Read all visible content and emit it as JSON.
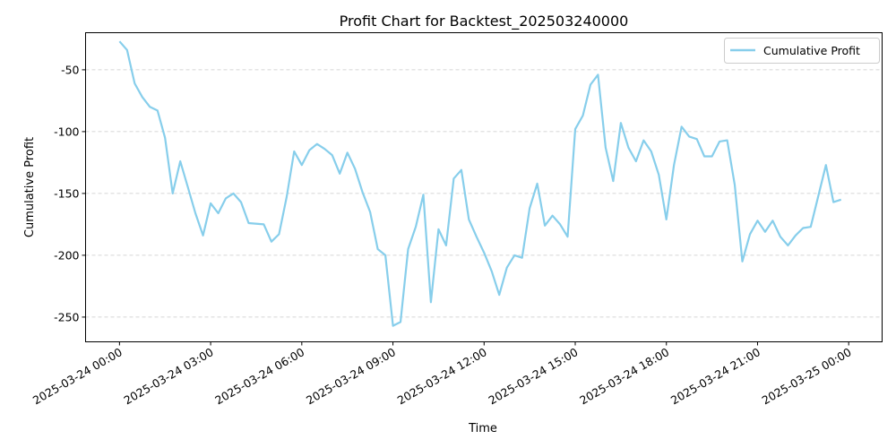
{
  "chart_data": {
    "type": "line",
    "title": "Profit Chart for Backtest_202503240000",
    "xlabel": "Time",
    "ylabel": "Cumulative Profit",
    "x_tick_labels": [
      "2025-03-24 00:00",
      "2025-03-24 03:00",
      "2025-03-24 06:00",
      "2025-03-24 09:00",
      "2025-03-24 12:00",
      "2025-03-24 15:00",
      "2025-03-24 18:00",
      "2025-03-24 21:00",
      "2025-03-25 00:00"
    ],
    "y_ticks": [
      -250,
      -200,
      -150,
      -100,
      -50
    ],
    "xlim": [
      "2025-03-23 22:53",
      "2025-03-25 01:06"
    ],
    "ylim": [
      -270,
      -20
    ],
    "grid": "y-dashed",
    "legend": "top-right",
    "series": [
      {
        "name": "Cumulative Profit",
        "color": "#87ceeb",
        "points": [
          [
            "2025-03-24 00:00",
            -27
          ],
          [
            "2025-03-24 00:15",
            -34
          ],
          [
            "2025-03-24 00:30",
            -61
          ],
          [
            "2025-03-24 00:45",
            -72
          ],
          [
            "2025-03-24 01:00",
            -80
          ],
          [
            "2025-03-24 01:15",
            -83
          ],
          [
            "2025-03-24 01:30",
            -105
          ],
          [
            "2025-03-24 01:45",
            -150
          ],
          [
            "2025-03-24 02:00",
            -124
          ],
          [
            "2025-03-24 02:15",
            -145
          ],
          [
            "2025-03-24 02:30",
            -166
          ],
          [
            "2025-03-24 02:45",
            -184
          ],
          [
            "2025-03-24 03:00",
            -158
          ],
          [
            "2025-03-24 03:15",
            -166
          ],
          [
            "2025-03-24 03:30",
            -154
          ],
          [
            "2025-03-24 03:45",
            -150
          ],
          [
            "2025-03-24 04:00",
            -157
          ],
          [
            "2025-03-24 04:15",
            -174
          ],
          [
            "2025-03-24 04:45",
            -175
          ],
          [
            "2025-03-24 05:00",
            -189
          ],
          [
            "2025-03-24 05:15",
            -183
          ],
          [
            "2025-03-24 05:30",
            -153
          ],
          [
            "2025-03-24 05:45",
            -116
          ],
          [
            "2025-03-24 06:00",
            -127
          ],
          [
            "2025-03-24 06:15",
            -115
          ],
          [
            "2025-03-24 06:30",
            -110
          ],
          [
            "2025-03-24 06:45",
            -114
          ],
          [
            "2025-03-24 07:00",
            -119
          ],
          [
            "2025-03-24 07:15",
            -134
          ],
          [
            "2025-03-24 07:30",
            -117
          ],
          [
            "2025-03-24 07:45",
            -130
          ],
          [
            "2025-03-24 08:00",
            -149
          ],
          [
            "2025-03-24 08:15",
            -165
          ],
          [
            "2025-03-24 08:30",
            -195
          ],
          [
            "2025-03-24 08:45",
            -200
          ],
          [
            "2025-03-24 09:00",
            -257
          ],
          [
            "2025-03-24 09:15",
            -254
          ],
          [
            "2025-03-24 09:30",
            -195
          ],
          [
            "2025-03-24 09:45",
            -177
          ],
          [
            "2025-03-24 10:00",
            -151
          ],
          [
            "2025-03-24 10:15",
            -238
          ],
          [
            "2025-03-24 10:30",
            -179
          ],
          [
            "2025-03-24 10:45",
            -192
          ],
          [
            "2025-03-24 11:00",
            -138
          ],
          [
            "2025-03-24 11:15",
            -131
          ],
          [
            "2025-03-24 11:30",
            -171
          ],
          [
            "2025-03-24 11:45",
            -185
          ],
          [
            "2025-03-24 12:00",
            -198
          ],
          [
            "2025-03-24 12:15",
            -213
          ],
          [
            "2025-03-24 12:30",
            -232
          ],
          [
            "2025-03-24 12:45",
            -210
          ],
          [
            "2025-03-24 13:00",
            -200
          ],
          [
            "2025-03-24 13:15",
            -202
          ],
          [
            "2025-03-24 13:30",
            -162
          ],
          [
            "2025-03-24 13:45",
            -142
          ],
          [
            "2025-03-24 14:00",
            -176
          ],
          [
            "2025-03-24 14:15",
            -168
          ],
          [
            "2025-03-24 14:30",
            -175
          ],
          [
            "2025-03-24 14:45",
            -185
          ],
          [
            "2025-03-24 15:00",
            -98
          ],
          [
            "2025-03-24 15:15",
            -87
          ],
          [
            "2025-03-24 15:30",
            -62
          ],
          [
            "2025-03-24 15:45",
            -54
          ],
          [
            "2025-03-24 16:00",
            -113
          ],
          [
            "2025-03-24 16:15",
            -140
          ],
          [
            "2025-03-24 16:30",
            -93
          ],
          [
            "2025-03-24 16:45",
            -113
          ],
          [
            "2025-03-24 17:00",
            -124
          ],
          [
            "2025-03-24 17:15",
            -107
          ],
          [
            "2025-03-24 17:30",
            -116
          ],
          [
            "2025-03-24 17:45",
            -135
          ],
          [
            "2025-03-24 18:00",
            -171
          ],
          [
            "2025-03-24 18:15",
            -127
          ],
          [
            "2025-03-24 18:30",
            -96
          ],
          [
            "2025-03-24 18:45",
            -104
          ],
          [
            "2025-03-24 19:00",
            -106
          ],
          [
            "2025-03-24 19:15",
            -120
          ],
          [
            "2025-03-24 19:30",
            -120
          ],
          [
            "2025-03-24 19:45",
            -108
          ],
          [
            "2025-03-24 20:00",
            -107
          ],
          [
            "2025-03-24 20:15",
            -143
          ],
          [
            "2025-03-24 20:30",
            -205
          ],
          [
            "2025-03-24 20:45",
            -183
          ],
          [
            "2025-03-24 21:00",
            -172
          ],
          [
            "2025-03-24 21:15",
            -181
          ],
          [
            "2025-03-24 21:30",
            -172
          ],
          [
            "2025-03-24 21:45",
            -185
          ],
          [
            "2025-03-24 22:00",
            -192
          ],
          [
            "2025-03-24 22:15",
            -184
          ],
          [
            "2025-03-24 22:30",
            -178
          ],
          [
            "2025-03-24 22:45",
            -177
          ],
          [
            "2025-03-24 23:00",
            -152
          ],
          [
            "2025-03-24 23:15",
            -127
          ],
          [
            "2025-03-24 23:30",
            -157
          ],
          [
            "2025-03-24 23:45",
            -155
          ]
        ]
      }
    ]
  }
}
